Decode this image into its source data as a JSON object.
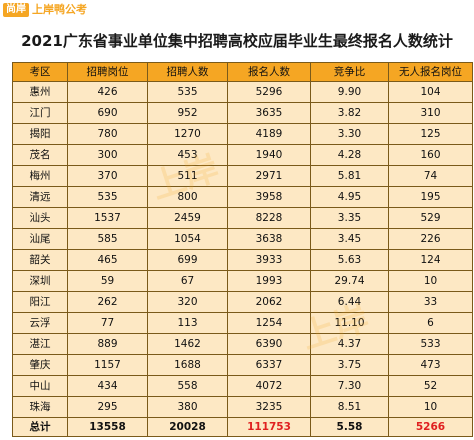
{
  "logo": {
    "mark": "尚岸",
    "text": "上岸鸭公考"
  },
  "title": "2021广东省事业单位集中招聘高校应届毕业生最终报名人数统计",
  "columns": [
    "考区",
    "招聘岗位",
    "招聘人数",
    "报名人数",
    "竞争比",
    "无人报名岗位"
  ],
  "rows": [
    [
      "惠州",
      "426",
      "535",
      "5296",
      "9.90",
      "104"
    ],
    [
      "江门",
      "690",
      "952",
      "3635",
      "3.82",
      "310"
    ],
    [
      "揭阳",
      "780",
      "1270",
      "4189",
      "3.30",
      "125"
    ],
    [
      "茂名",
      "300",
      "453",
      "1940",
      "4.28",
      "160"
    ],
    [
      "梅州",
      "370",
      "511",
      "2971",
      "5.81",
      "74"
    ],
    [
      "清远",
      "535",
      "800",
      "3958",
      "4.95",
      "195"
    ],
    [
      "汕头",
      "1537",
      "2459",
      "8228",
      "3.35",
      "529"
    ],
    [
      "汕尾",
      "585",
      "1054",
      "3638",
      "3.45",
      "226"
    ],
    [
      "韶关",
      "465",
      "699",
      "3933",
      "5.63",
      "124"
    ],
    [
      "深圳",
      "59",
      "67",
      "1993",
      "29.74",
      "10"
    ],
    [
      "阳江",
      "262",
      "320",
      "2062",
      "6.44",
      "33"
    ],
    [
      "云浮",
      "77",
      "113",
      "1254",
      "11.10",
      "6"
    ],
    [
      "湛江",
      "889",
      "1462",
      "6390",
      "4.37",
      "533"
    ],
    [
      "肇庆",
      "1157",
      "1688",
      "6337",
      "3.75",
      "473"
    ],
    [
      "中山",
      "434",
      "558",
      "4072",
      "7.30",
      "52"
    ],
    [
      "珠海",
      "295",
      "380",
      "3235",
      "8.51",
      "10"
    ]
  ],
  "total": [
    "总计",
    "13558",
    "20028",
    "111753",
    "5.58",
    "5266"
  ],
  "colors": {
    "header": "#f5a623",
    "cell": "#fde8c4",
    "highlight": "#e02020"
  }
}
